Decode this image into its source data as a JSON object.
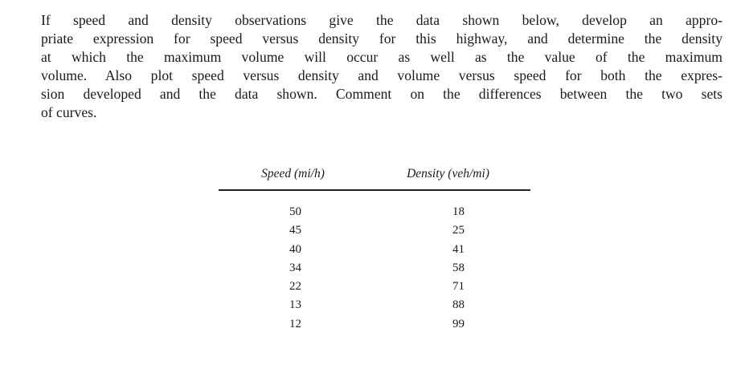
{
  "problem": {
    "lines": [
      "If speed and density observations give the data shown below, develop an appro-",
      "priate expression for speed versus density for this highway, and determine the density",
      "at which the maximum volume will occur as well as the value of the maximum",
      "volume. Also plot speed versus density and volume versus speed for both the expres-",
      "sion developed and the data shown. Comment on the differences between the two sets",
      "of curves."
    ]
  },
  "table": {
    "headers": {
      "speed": "Speed (mi/h)",
      "density": "Density (veh/mi)"
    },
    "rows": [
      {
        "speed": "50",
        "density": "18"
      },
      {
        "speed": "45",
        "density": "25"
      },
      {
        "speed": "40",
        "density": "41"
      },
      {
        "speed": "34",
        "density": "58"
      },
      {
        "speed": "22",
        "density": "71"
      },
      {
        "speed": "13",
        "density": "88"
      },
      {
        "speed": "12",
        "density": "99"
      }
    ]
  }
}
